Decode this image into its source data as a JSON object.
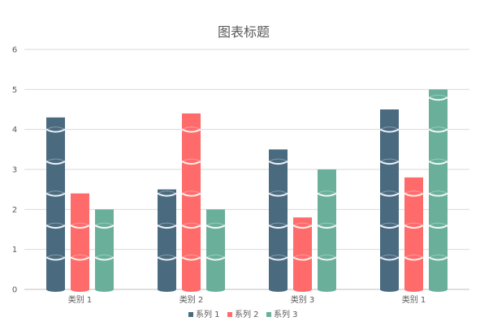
{
  "chart_data": {
    "type": "bar",
    "style": "stacked-cylinder-segments",
    "title": "图表标题",
    "categories": [
      "类别 1",
      "类别 2",
      "类别 3",
      "类别 1"
    ],
    "series": [
      {
        "name": "系列 1",
        "color": "#4a6a80",
        "values": [
          4.3,
          2.5,
          3.5,
          4.5
        ]
      },
      {
        "name": "系列 2",
        "color": "#ff6b6b",
        "values": [
          2.4,
          4.4,
          1.8,
          2.8
        ]
      },
      {
        "name": "系列 3",
        "color": "#6aaf9a",
        "values": [
          2.0,
          2.0,
          3.0,
          5.0
        ]
      }
    ],
    "yticks": [
      "0",
      "1",
      "2",
      "3",
      "4",
      "5",
      "6"
    ],
    "ylim": [
      0,
      6
    ],
    "grid": true,
    "legend_position": "bottom",
    "gridline_color": "#d9d9d9",
    "axis_color": "#bfbfbf"
  }
}
